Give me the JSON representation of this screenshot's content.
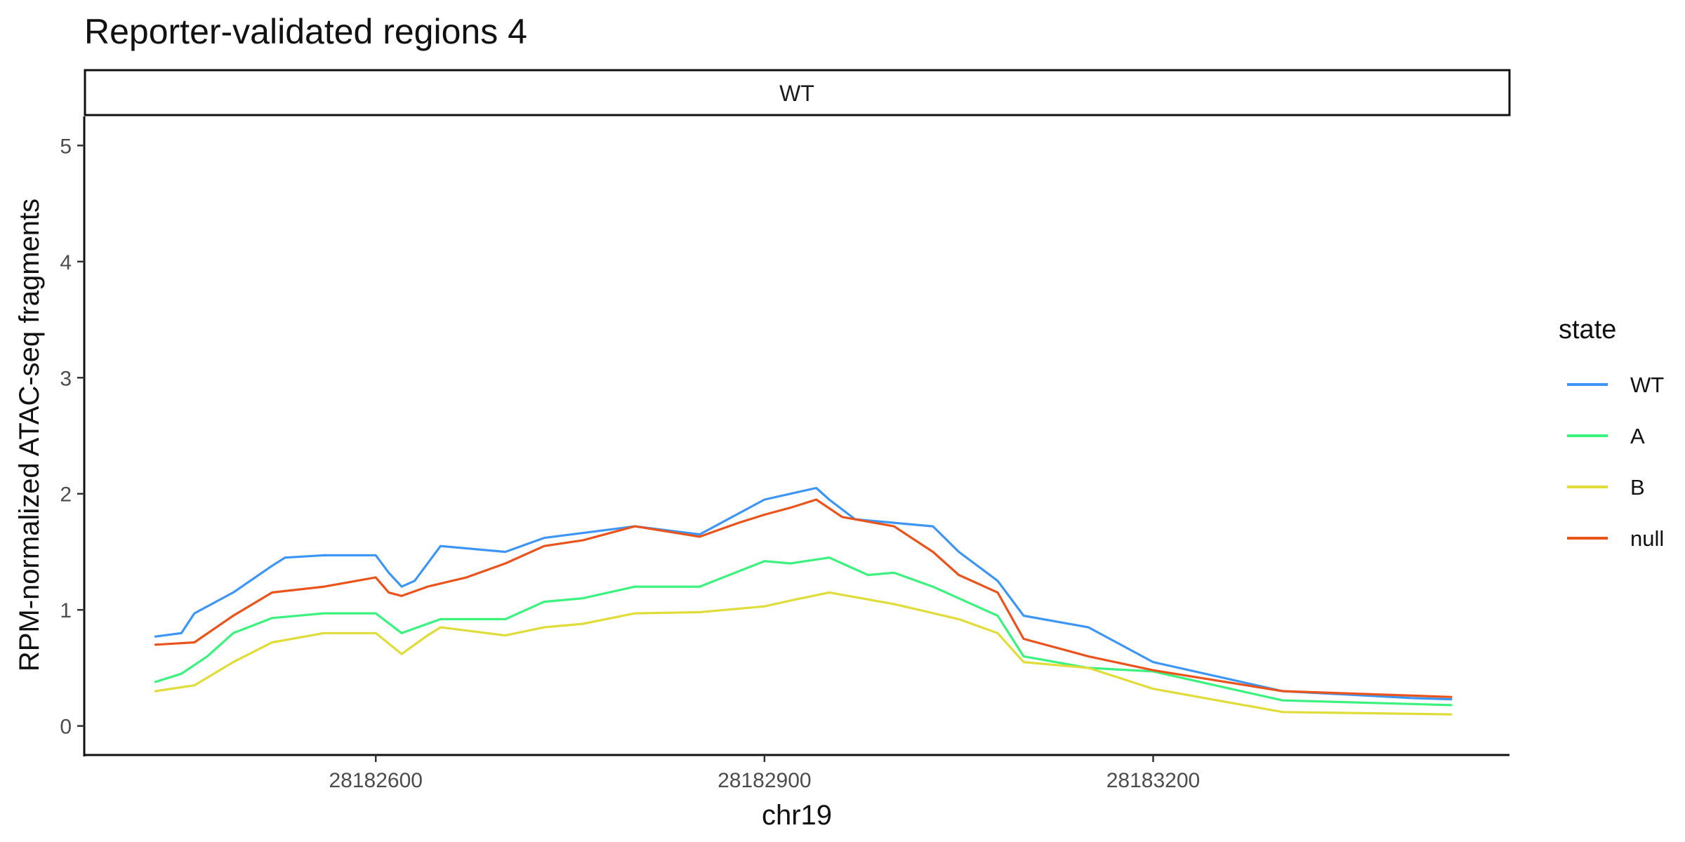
{
  "chart_data": {
    "type": "line",
    "title": "Reporter-validated regions 4",
    "facet": "WT",
    "xlabel": "chr19",
    "ylabel": "RPM-normalized ATAC-seq fragments",
    "xlim": [
      28182375,
      28183475
    ],
    "ylim": [
      -0.25,
      5.25
    ],
    "xticks": [
      28182600,
      28182900,
      28183200
    ],
    "yticks": [
      0,
      1,
      2,
      3,
      4,
      5
    ],
    "grid": false,
    "legend": {
      "title": "state",
      "placement": "right"
    },
    "series": [
      {
        "name": "WT",
        "color": "#3d96f5",
        "x": [
          28182430,
          28182450,
          28182460,
          28182490,
          28182520,
          28182530,
          28182560,
          28182600,
          28182610,
          28182620,
          28182630,
          28182650,
          28182700,
          28182730,
          28182800,
          28182850,
          28182900,
          28182920,
          28182940,
          28182950,
          28182970,
          28183000,
          28183030,
          28183050,
          28183080,
          28183100,
          28183150,
          28183200,
          28183300,
          28183400,
          28183430
        ],
        "y": [
          0.77,
          0.8,
          0.97,
          1.15,
          1.38,
          1.45,
          1.47,
          1.47,
          1.32,
          1.2,
          1.25,
          1.55,
          1.5,
          1.62,
          1.72,
          1.65,
          1.95,
          2.0,
          2.05,
          1.95,
          1.78,
          1.75,
          1.72,
          1.5,
          1.25,
          0.95,
          0.85,
          0.55,
          0.3,
          0.24,
          0.23
        ]
      },
      {
        "name": "A",
        "color": "#3cf27f",
        "x": [
          28182430,
          28182450,
          28182470,
          28182490,
          28182520,
          28182560,
          28182600,
          28182620,
          28182640,
          28182650,
          28182700,
          28182730,
          28182760,
          28182800,
          28182850,
          28182900,
          28182920,
          28182950,
          28182980,
          28183000,
          28183030,
          28183060,
          28183080,
          28183100,
          28183150,
          28183200,
          28183300,
          28183430
        ],
        "y": [
          0.38,
          0.45,
          0.6,
          0.8,
          0.93,
          0.97,
          0.97,
          0.8,
          0.88,
          0.92,
          0.92,
          1.07,
          1.1,
          1.2,
          1.2,
          1.42,
          1.4,
          1.45,
          1.3,
          1.32,
          1.2,
          1.05,
          0.95,
          0.6,
          0.5,
          0.47,
          0.22,
          0.18
        ]
      },
      {
        "name": "B",
        "color": "#e0dc3a",
        "x": [
          28182430,
          28182460,
          28182490,
          28182520,
          28182560,
          28182600,
          28182620,
          28182640,
          28182650,
          28182700,
          28182730,
          28182760,
          28182800,
          28182850,
          28182900,
          28182920,
          28182950,
          28183000,
          28183050,
          28183080,
          28183100,
          28183150,
          28183200,
          28183300,
          28183430
        ],
        "y": [
          0.3,
          0.35,
          0.55,
          0.72,
          0.8,
          0.8,
          0.62,
          0.78,
          0.85,
          0.78,
          0.85,
          0.88,
          0.97,
          0.98,
          1.03,
          1.08,
          1.15,
          1.05,
          0.92,
          0.8,
          0.55,
          0.5,
          0.32,
          0.12,
          0.1
        ]
      },
      {
        "name": "null",
        "color": "#e8541c",
        "x": [
          28182430,
          28182460,
          28182490,
          28182520,
          28182560,
          28182600,
          28182610,
          28182620,
          28182640,
          28182670,
          28182700,
          28182730,
          28182760,
          28182800,
          28182850,
          28182880,
          28182900,
          28182920,
          28182940,
          28182960,
          28183000,
          28183030,
          28183050,
          28183080,
          28183100,
          28183150,
          28183200,
          28183300,
          28183430
        ],
        "y": [
          0.7,
          0.72,
          0.95,
          1.15,
          1.2,
          1.28,
          1.15,
          1.12,
          1.2,
          1.28,
          1.4,
          1.55,
          1.6,
          1.72,
          1.63,
          1.75,
          1.82,
          1.88,
          1.95,
          1.8,
          1.72,
          1.5,
          1.3,
          1.15,
          0.75,
          0.6,
          0.48,
          0.3,
          0.25
        ]
      }
    ]
  }
}
